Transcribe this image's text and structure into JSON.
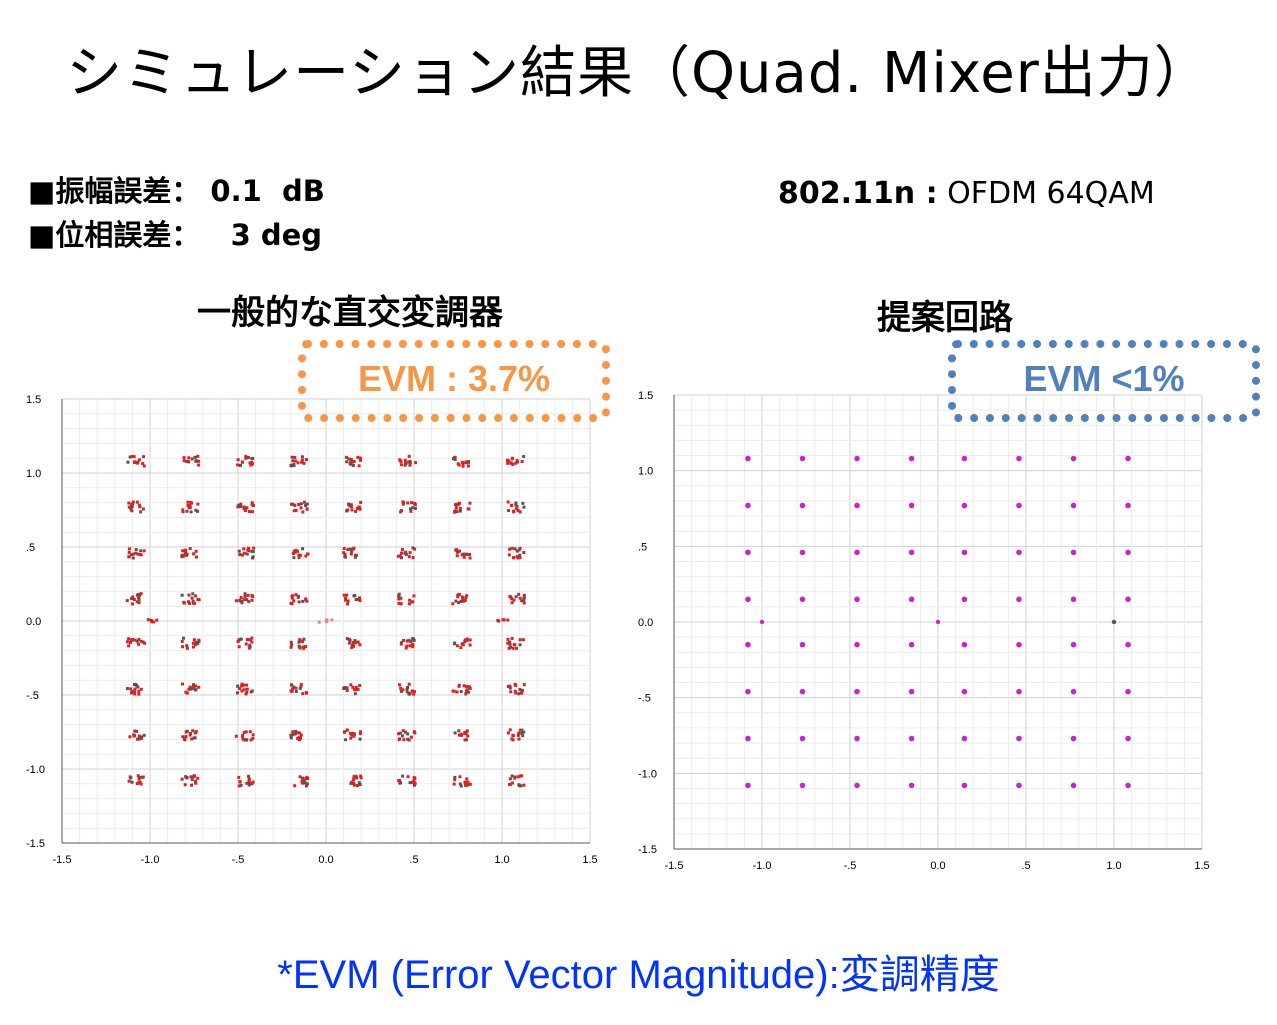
{
  "title": "シミュレーション結果（Quad. Mixer出力）",
  "specs": [
    {
      "label": "■振幅誤差：",
      "value": "0.1  dB"
    },
    {
      "label": "■位相誤差：",
      "value": "  3 deg"
    }
  ],
  "standard": {
    "bold": "802.11n :",
    "text": " OFDM 64QAM"
  },
  "panels": [
    {
      "title": "一般的な直交変調器",
      "evm": "EVM : 3.7%"
    },
    {
      "title": "提案回路",
      "evm": "EVM <1%"
    }
  ],
  "footer": {
    "prefix": "*EVM (Error Vector Magnitude):",
    "jp": "変調精度"
  },
  "chart_data": [
    {
      "type": "scatter",
      "title": "",
      "xlabel": "",
      "ylabel": "",
      "xlim": [
        -1.5,
        1.5
      ],
      "ylim": [
        -1.5,
        1.5
      ],
      "x_ticks": [
        "-1.5",
        "-1.0",
        "-.5",
        "0.0",
        ".5",
        "1.0",
        "1.5"
      ],
      "y_ticks": [
        "1.5",
        "1.0",
        ".5",
        "0.0",
        "-.5",
        "-1.0",
        "-1.5"
      ],
      "grid": true,
      "series": [
        {
          "constellation_levels": [
            -1.08,
            -0.77,
            -0.46,
            -0.15,
            0.15,
            0.46,
            0.77,
            1.08
          ],
          "pilot_points": [
            [
              -1.0,
              0.0
            ],
            [
              0.0,
              0.0
            ],
            [
              1.0,
              0.0
            ]
          ],
          "color": "#e02020",
          "scatter_spread": 0.05
        }
      ]
    },
    {
      "type": "scatter",
      "title": "",
      "xlabel": "",
      "ylabel": "",
      "xlim": [
        -1.5,
        1.5
      ],
      "ylim": [
        -1.5,
        1.5
      ],
      "x_ticks": [
        "-1.5",
        "-1.0",
        "-.5",
        "0.0",
        ".5",
        "1.0",
        "1.5"
      ],
      "y_ticks": [
        "1.5",
        "1.0",
        ".5",
        "0.0",
        "-.5",
        "-1.0",
        "-1.5"
      ],
      "grid": true,
      "series": [
        {
          "constellation_levels": [
            -1.08,
            -0.77,
            -0.46,
            -0.15,
            0.15,
            0.46,
            0.77,
            1.08
          ],
          "pilot_points": [
            [
              -1.0,
              0.0
            ],
            [
              0.0,
              0.0
            ],
            [
              1.0,
              0.0
            ]
          ],
          "color": "#cc22cc",
          "scatter_spread": 0.0
        }
      ]
    }
  ]
}
